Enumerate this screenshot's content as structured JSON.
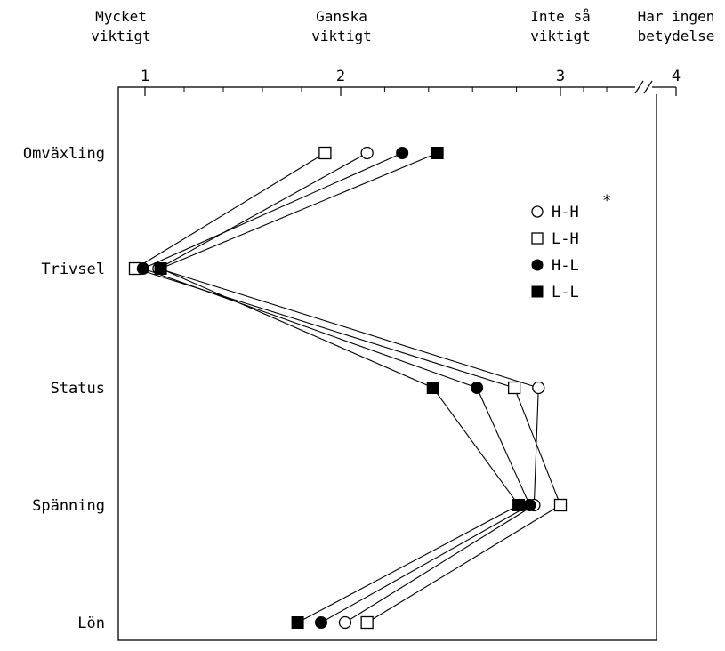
{
  "chart_data": {
    "type": "line",
    "orientation": "horizontal",
    "top_scale_labels": [
      {
        "value": 1,
        "lines": [
          "Mycket",
          "viktigt"
        ]
      },
      {
        "value": 2,
        "lines": [
          "Ganska",
          "viktigt"
        ]
      },
      {
        "value": 3,
        "lines": [
          "Inte så",
          "viktigt"
        ]
      },
      {
        "value": 4,
        "lines": [
          "Har ingen",
          "betydelse"
        ]
      }
    ],
    "ticks": [
      "1",
      "2",
      "3",
      "4"
    ],
    "xlim": [
      1,
      4
    ],
    "axis_break": true,
    "grid": false,
    "categories": [
      "Omväxling",
      "Trivsel",
      "Status",
      "Spänning",
      "Lön"
    ],
    "series": [
      {
        "name": "H-H",
        "marker": "circle-open",
        "values": [
          2.12,
          1.07,
          2.9,
          2.88,
          2.02
        ]
      },
      {
        "name": "L-H",
        "marker": "square-open",
        "values": [
          1.92,
          0.95,
          2.79,
          3.0,
          2.12
        ]
      },
      {
        "name": "H-L",
        "marker": "circle-filled",
        "values": [
          2.28,
          0.99,
          2.62,
          2.86,
          1.9
        ]
      },
      {
        "name": "L-L",
        "marker": "square-filled",
        "values": [
          2.44,
          1.08,
          2.42,
          2.81,
          1.78
        ]
      }
    ],
    "legend": {
      "position": "right",
      "note": "*"
    }
  }
}
